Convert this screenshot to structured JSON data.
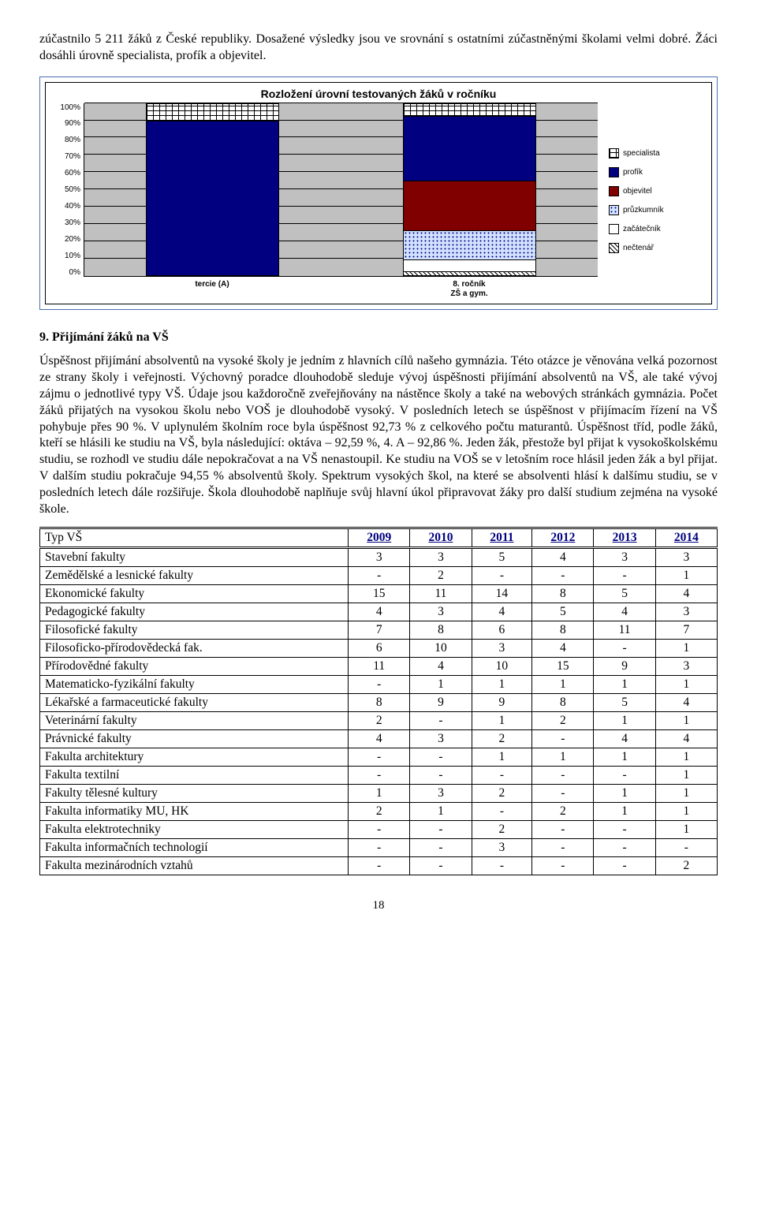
{
  "intro_paragraph": "zúčastnilo 5 211 žáků z České republiky. Dosažené výsledky jsou ve srovnání s ostatními zúčastněnými školami velmi dobré. Žáci dosáhli úrovně specialista, profík a objevitel.",
  "chart": {
    "type": "stacked-bar",
    "title": "Rozložení úrovní testovaných žáků v ročníku",
    "title_fontsize": 14,
    "background_color": "#c0c0c0",
    "grid_color": "#000000",
    "ylim": [
      0,
      100
    ],
    "ytick_step": 10,
    "yticks": [
      "0%",
      "10%",
      "20%",
      "30%",
      "40%",
      "50%",
      "60%",
      "70%",
      "80%",
      "90%",
      "100%"
    ],
    "categories": [
      "tercie (A)",
      "8. ročník\nZŠ a gym."
    ],
    "legend_position": "right",
    "series": [
      {
        "name": "specialista",
        "pattern": "hatch-brick",
        "color": "#ffffff"
      },
      {
        "name": "profík",
        "pattern": "solid-navy",
        "color": "#000080"
      },
      {
        "name": "objevitel",
        "pattern": "solid-maroon",
        "color": "#800000"
      },
      {
        "name": "průzkumník",
        "pattern": "dots-blue",
        "color": "#d0e0ff"
      },
      {
        "name": "začátečník",
        "pattern": "solid-white",
        "color": "#ffffff"
      },
      {
        "name": "nečtenář",
        "pattern": "hatch-diag",
        "color": "#ffffff"
      }
    ],
    "stacks": [
      {
        "category": "tercie (A)",
        "segments": [
          {
            "series": "profík",
            "value": 90,
            "pattern": "solid-navy"
          },
          {
            "series": "specialista",
            "value": 10,
            "pattern": "hatch-brick"
          }
        ]
      },
      {
        "category": "8. ročník ZŠ a gym.",
        "segments": [
          {
            "series": "nečtenář",
            "value": 2,
            "pattern": "hatch-diag"
          },
          {
            "series": "začátečník",
            "value": 7,
            "pattern": "solid-white"
          },
          {
            "series": "průzkumník",
            "value": 17,
            "pattern": "dots-blue"
          },
          {
            "series": "objevitel",
            "value": 29,
            "pattern": "solid-maroon"
          },
          {
            "series": "profík",
            "value": 38,
            "pattern": "solid-navy"
          },
          {
            "series": "specialista",
            "value": 7,
            "pattern": "hatch-brick"
          }
        ]
      }
    ],
    "bar_width": 0.52,
    "label_fontsize": 10,
    "label_font": "Arial"
  },
  "section": {
    "number": "9.",
    "title": "Přijímání žáků na VŠ",
    "body": "Úspěšnost přijímání absolventů na vysoké školy je jedním z hlavních cílů našeho gymnázia. Této otázce je věnována velká pozornost ze strany školy i veřejnosti. Výchovný poradce dlouhodobě sleduje vývoj úspěšnosti přijímání absolventů na VŠ, ale také vývoj zájmu o jednotlivé typy VŠ. Údaje jsou každoročně zveřejňovány na nástěnce školy a také na webových stránkách gymnázia. Počet žáků přijatých na vysokou školu nebo VOŠ je dlouhodobě vysoký. V posledních letech se úspěšnost v přijímacím řízení na VŠ pohybuje přes 90 %. V uplynulém školním roce byla úspěšnost 92,73 % z celkového počtu maturantů. Úspěšnost tříd, podle žáků, kteří se hlásili ke studiu na VŠ, byla následující: oktáva – 92,59 %, 4. A – 92,86 %. Jeden žák, přestože byl přijat k vysokoškolskému studiu, se rozhodl ve studiu dále nepokračovat a na VŠ nenastoupil. Ke studiu na VOŠ se v letošním roce hlásil jeden žák a byl přijat. V dalším studiu pokračuje 94,55 % absolventů školy. Spektrum vysokých škol, na které se absolventi hlásí k dalšímu studiu, se v posledních letech dále rozšiřuje. Škola dlouhodobě naplňuje svůj hlavní úkol připravovat žáky pro další studium zejména na vysoké škole."
  },
  "table": {
    "header_color": "#000080",
    "columns": [
      "Typ VŠ",
      "2009",
      "2010",
      "2011",
      "2012",
      "2013",
      "2014"
    ],
    "col_align": [
      "left",
      "center",
      "center",
      "center",
      "center",
      "center",
      "center"
    ],
    "rows": [
      [
        "Stavební fakulty",
        "3",
        "3",
        "5",
        "4",
        "3",
        "3"
      ],
      [
        "Zemědělské a lesnické fakulty",
        "-",
        "2",
        "-",
        "-",
        "-",
        "1"
      ],
      [
        "Ekonomické fakulty",
        "15",
        "11",
        "14",
        "8",
        "5",
        "4"
      ],
      [
        "Pedagogické fakulty",
        "4",
        "3",
        "4",
        "5",
        "4",
        "3"
      ],
      [
        "Filosofické fakulty",
        "7",
        "8",
        "6",
        "8",
        "11",
        "7"
      ],
      [
        "Filosoficko-přírodovědecká fak.",
        "6",
        "10",
        "3",
        "4",
        "-",
        "1"
      ],
      [
        "Přírodovědné fakulty",
        "11",
        "4",
        "10",
        "15",
        "9",
        "3"
      ],
      [
        "Matematicko-fyzikální fakulty",
        "-",
        "1",
        "1",
        "1",
        "1",
        "1"
      ],
      [
        "Lékařské a farmaceutické fakulty",
        "8",
        "9",
        "9",
        "8",
        "5",
        "4"
      ],
      [
        "Veterinární fakulty",
        "2",
        "-",
        "1",
        "2",
        "1",
        "1"
      ],
      [
        "Právnické fakulty",
        "4",
        "3",
        "2",
        "-",
        "4",
        "4"
      ],
      [
        "Fakulta architektury",
        "-",
        "-",
        "1",
        "1",
        "1",
        "1"
      ],
      [
        "Fakulta textilní",
        "-",
        "-",
        "-",
        "-",
        "-",
        "1"
      ],
      [
        "Fakulty tělesné kultury",
        "1",
        "3",
        "2",
        "-",
        "1",
        "1"
      ],
      [
        "Fakulta informatiky MU, HK",
        "2",
        "1",
        "-",
        "2",
        "1",
        "1"
      ],
      [
        "Fakulta elektrotechniky",
        "-",
        "-",
        "2",
        "-",
        "-",
        "1"
      ],
      [
        "Fakulta informačních technologií",
        "-",
        "-",
        "3",
        "-",
        "-",
        "-"
      ],
      [
        "Fakulta mezinárodních vztahů",
        "-",
        "-",
        "-",
        "-",
        "-",
        "2"
      ]
    ]
  },
  "page_number": "18"
}
